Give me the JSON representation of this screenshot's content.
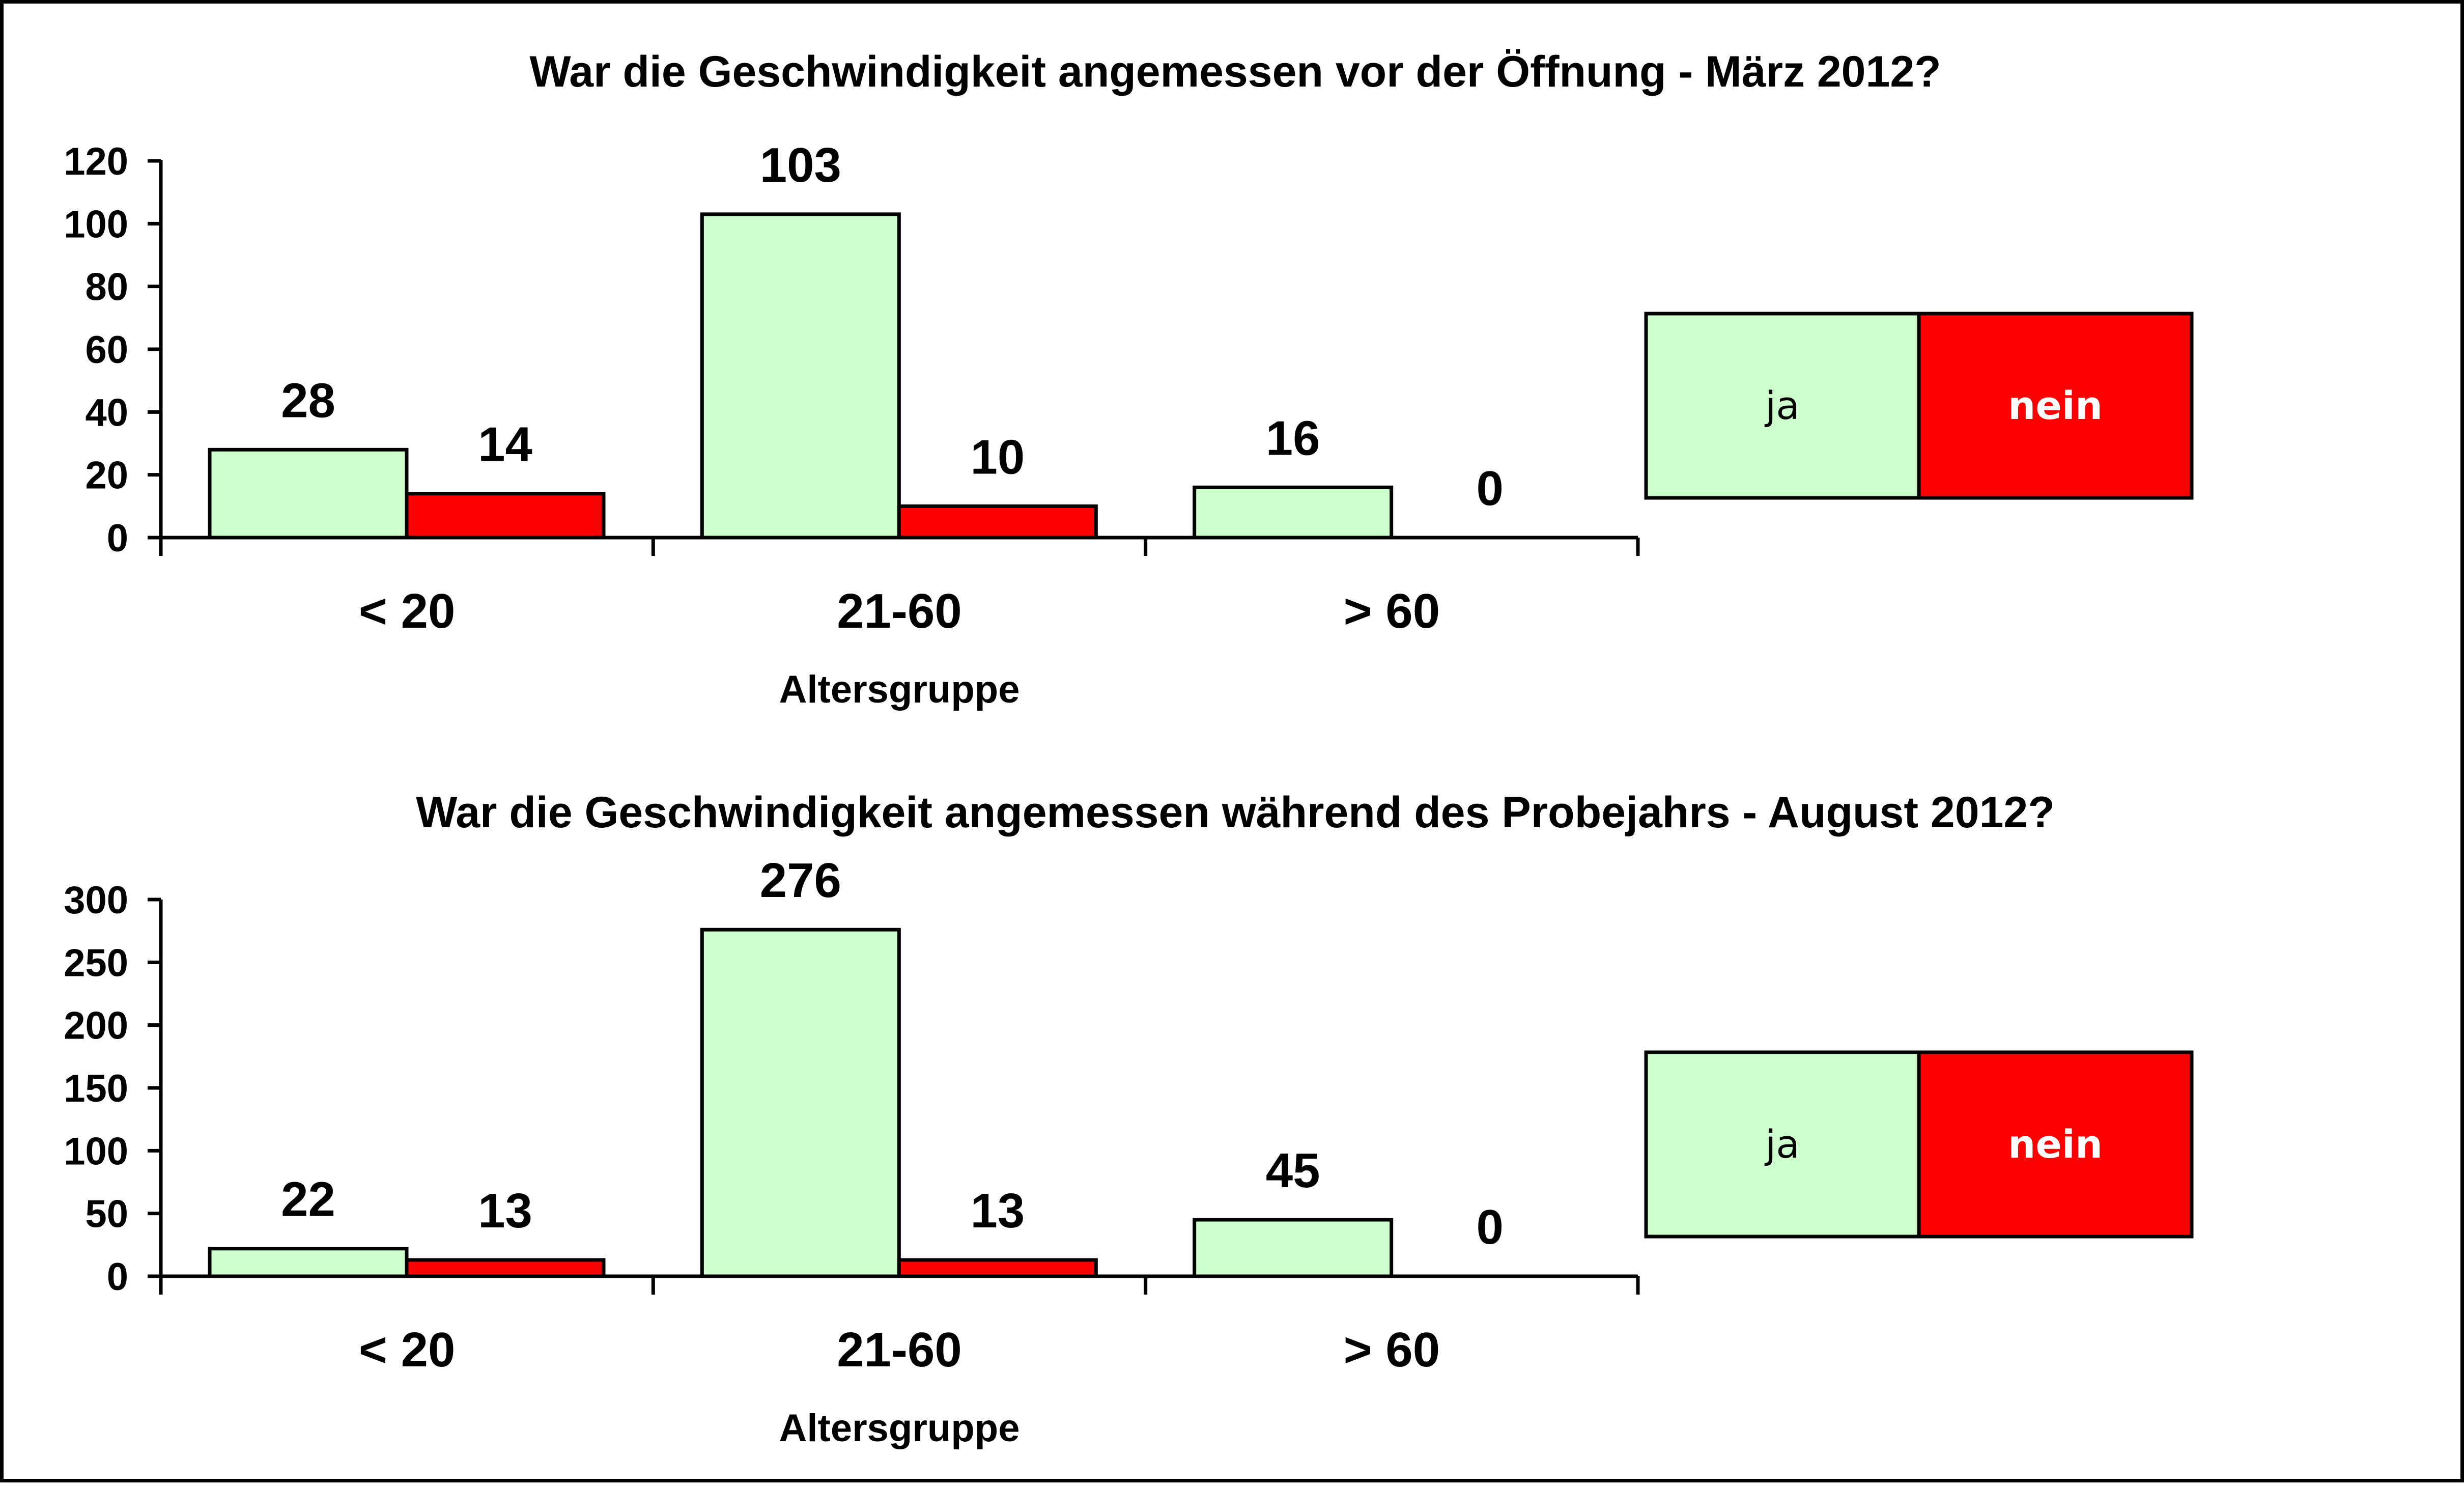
{
  "chart_data": [
    {
      "type": "bar",
      "title": "War die Geschwindigkeit angemessen vor der Öffnung - März 2012?",
      "xlabel": "Altersgruppe",
      "ylabel": "",
      "categories": [
        "< 20",
        "21-60",
        "> 60"
      ],
      "ylim": [
        0,
        120
      ],
      "yticks": [
        "0",
        "20",
        "40",
        "60",
        "80",
        "100",
        "120"
      ],
      "series": [
        {
          "name": "ja",
          "values": [
            28,
            103,
            16
          ],
          "color": "#CCFFCC"
        },
        {
          "name": "nein",
          "values": [
            14,
            10,
            0
          ],
          "color": "#FF0000"
        }
      ],
      "legend": {
        "placement": "right",
        "items": [
          "ja",
          "nein"
        ]
      },
      "grid": false
    },
    {
      "type": "bar",
      "title": "War die Geschwindigkeit angemessen während des Probejahrs - August 2012?",
      "xlabel": "Altersgruppe",
      "ylabel": "",
      "categories": [
        "< 20",
        "21-60",
        "> 60"
      ],
      "ylim": [
        0,
        300
      ],
      "yticks": [
        "0",
        "50",
        "100",
        "150",
        "200",
        "250",
        "300"
      ],
      "series": [
        {
          "name": "ja",
          "values": [
            22,
            276,
            45
          ],
          "color": "#CCFFCC"
        },
        {
          "name": "nein",
          "values": [
            13,
            13,
            0
          ],
          "color": "#FF0000"
        }
      ],
      "legend": {
        "placement": "right",
        "items": [
          "ja",
          "nein"
        ]
      },
      "grid": false
    }
  ]
}
